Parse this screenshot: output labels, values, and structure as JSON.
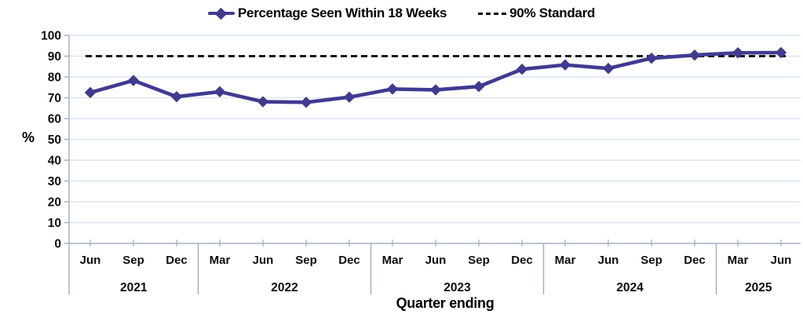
{
  "chart_data": {
    "type": "line",
    "title": "",
    "xlabel": "Quarter ending",
    "ylabel": "%",
    "ylim": [
      0,
      100
    ],
    "ytick_step": 10,
    "grid": true,
    "legend_position": "top-center",
    "categories": [
      "Jun 2021",
      "Sep 2021",
      "Dec 2021",
      "Mar 2022",
      "Jun 2022",
      "Sep 2022",
      "Dec 2022",
      "Mar 2023",
      "Jun 2023",
      "Sep 2023",
      "Dec 2023",
      "Mar 2024",
      "Jun 2024",
      "Sep 2024",
      "Dec 2024",
      "Mar 2025",
      "Jun 2025"
    ],
    "x_axis_years": [
      {
        "label": "2021",
        "months": [
          "Jun",
          "Sep",
          "Dec"
        ]
      },
      {
        "label": "2022",
        "months": [
          "Mar",
          "Jun",
          "Sep",
          "Dec"
        ]
      },
      {
        "label": "2023",
        "months": [
          "Mar",
          "Jun",
          "Sep",
          "Dec"
        ]
      },
      {
        "label": "2024",
        "months": [
          "Mar",
          "Jun",
          "Sep",
          "Dec"
        ]
      },
      {
        "label": "2025",
        "months": [
          "Mar",
          "Jun"
        ]
      }
    ],
    "series": [
      {
        "name": "Percentage Seen Within 18 Weeks",
        "type": "line",
        "marker": "diamond",
        "color": "#403a90",
        "values": [
          72.5,
          78.3,
          70.5,
          72.9,
          68.1,
          67.8,
          70.3,
          74.2,
          73.8,
          75.4,
          83.7,
          85.8,
          84.1,
          89.0,
          90.5,
          91.6,
          91.7
        ]
      },
      {
        "name": "90% Standard",
        "type": "reference-line",
        "style": "dashed",
        "color": "#000000",
        "value": 90
      }
    ]
  },
  "legend": {
    "series_label": "Percentage Seen Within 18 Weeks",
    "standard_label": "90% Standard"
  },
  "axes": {
    "y_title": "%",
    "x_title": "Quarter ending"
  },
  "colors": {
    "series": "#403a90",
    "standard": "#000000",
    "gridline": "#dce6f2",
    "axis": "#a3adbd",
    "text": "#0d0d0d"
  }
}
